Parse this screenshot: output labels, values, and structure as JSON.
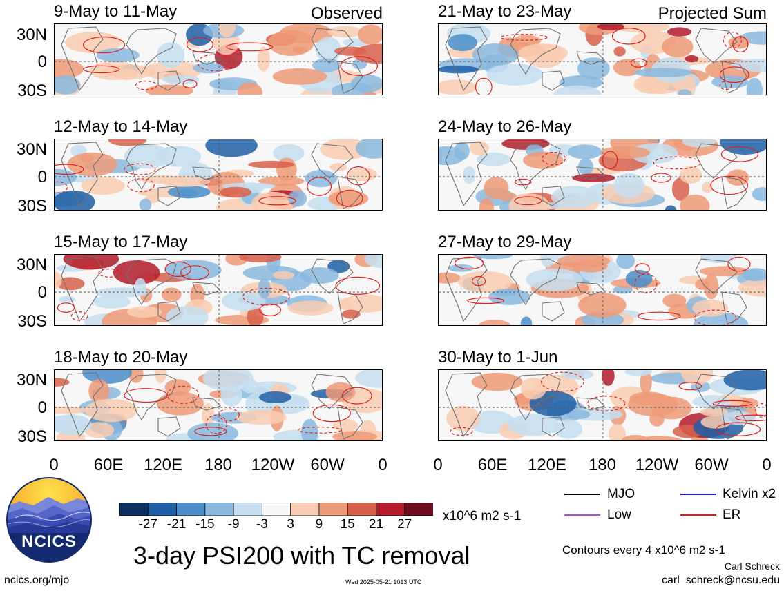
{
  "panels_left": [
    {
      "title": "9-May to 11-May",
      "tag": "Observed"
    },
    {
      "title": "12-May to 14-May",
      "tag": ""
    },
    {
      "title": "15-May to 17-May",
      "tag": ""
    },
    {
      "title": "18-May to 20-May",
      "tag": ""
    }
  ],
  "panels_right": [
    {
      "title": "21-May to 23-May",
      "tag": "Projected Sum"
    },
    {
      "title": "24-May to 26-May",
      "tag": ""
    },
    {
      "title": "27-May to 29-May",
      "tag": ""
    },
    {
      "title": "30-May to 1-Jun",
      "tag": ""
    }
  ],
  "lat_labels": [
    "30N",
    "0",
    "30S"
  ],
  "lon_labels": [
    "0",
    "60E",
    "120E",
    "180",
    "120W",
    "60W",
    "0"
  ],
  "colorbar": {
    "labels": [
      "-27",
      "-21",
      "-15",
      "-9",
      "-3",
      "3",
      "9",
      "15",
      "21",
      "27"
    ],
    "colors": [
      "#0b2f5e",
      "#1f5fa6",
      "#4a8ec9",
      "#8ab9de",
      "#c6def0",
      "#f7f7f7",
      "#f9cdb2",
      "#ee9a78",
      "#d8604b",
      "#b31b2a",
      "#6b0b1c"
    ],
    "units": "x10^6 m2 s-1"
  },
  "main_title": "3-day PSI200 with TC removal",
  "legend": [
    {
      "label": "MJO",
      "color": "#000000"
    },
    {
      "label": "Kelvin x2",
      "color": "#1a1aff"
    },
    {
      "label": "Low",
      "color": "#b04cf0"
    },
    {
      "label": "ER",
      "color": "#e0201a"
    }
  ],
  "contour_note": "Contours every 4 x10^6 m2 s-1",
  "author": "Carl Schreck",
  "email": "carl_schreck@ncsu.edu",
  "site": "ncics.org/mjo",
  "timestamp": "Wed 2025-05-21 1013 UTC",
  "logo_text": "NCICS",
  "icons": {
    "logo": "ncics-logo-icon"
  }
}
